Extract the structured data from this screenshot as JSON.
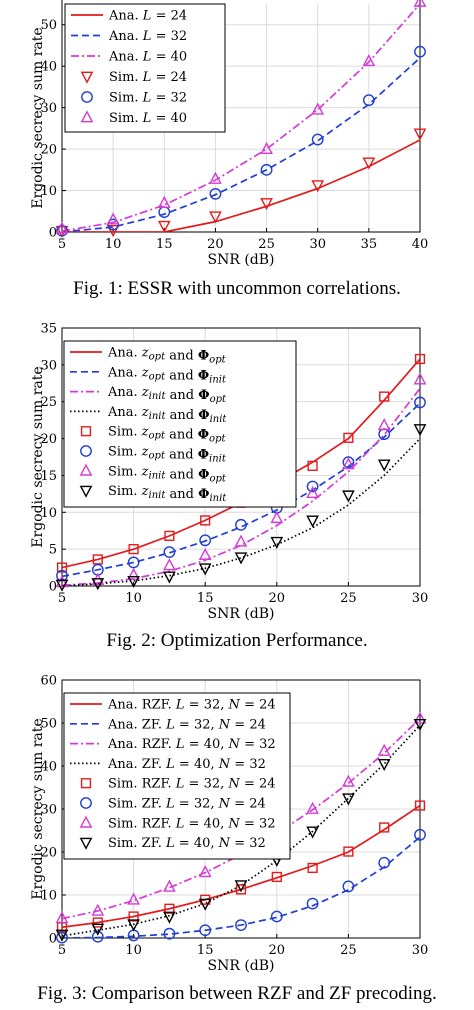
{
  "captions": [
    "Fig. 1: ESSR with uncommon correlations.",
    "Fig. 2: Optimization Performance.",
    "Fig. 3: Comparison between RZF and ZF precoding."
  ],
  "chart_data": [
    {
      "type": "line",
      "title": "",
      "xlabel": "SNR (dB)",
      "ylabel": "Ergodic secrecy sum rate",
      "xlim": [
        5,
        40
      ],
      "ylim": [
        0,
        55
      ],
      "xticks": [
        5,
        10,
        15,
        20,
        25,
        30,
        35,
        40
      ],
      "yticks": [
        0,
        10,
        20,
        30,
        40,
        50
      ],
      "grid": true,
      "legend_position": "top-left",
      "series": [
        {
          "name": "Ana. L = 24",
          "kind": "line",
          "color": "#e41a1c",
          "dash": "solid",
          "x": [
            5,
            10,
            15,
            20,
            25,
            30,
            35,
            40
          ],
          "y": [
            0,
            0,
            0,
            2.5,
            6.2,
            10.5,
            15.8,
            22.2
          ]
        },
        {
          "name": "Ana. L = 32",
          "kind": "line",
          "color": "#1f3fd6",
          "dash": "dashed",
          "x": [
            5,
            10,
            15,
            20,
            25,
            30,
            35,
            40
          ],
          "y": [
            0,
            1.2,
            4.3,
            9.0,
            15.0,
            22.0,
            30.8,
            42.0
          ]
        },
        {
          "name": "Ana. L = 40",
          "kind": "line",
          "color": "#d63ad6",
          "dash": "dashdot",
          "x": [
            5,
            10,
            15,
            20,
            25,
            30,
            35,
            40
          ],
          "y": [
            0.2,
            2.3,
            6.5,
            12.5,
            20.0,
            29.5,
            41.0,
            55.0
          ]
        },
        {
          "name": "Sim. L = 24",
          "kind": "marker",
          "marker": "triangle-down",
          "color": "#e41a1c",
          "x": [
            5,
            10,
            15,
            20,
            25,
            30,
            35,
            40
          ],
          "y": [
            0.3,
            0.5,
            1.5,
            3.8,
            7.0,
            11.3,
            16.8,
            23.8
          ]
        },
        {
          "name": "Sim. L = 32",
          "kind": "marker",
          "marker": "circle",
          "color": "#1f3fd6",
          "x": [
            5,
            10,
            15,
            20,
            25,
            30,
            35,
            40
          ],
          "y": [
            0.3,
            1.8,
            4.8,
            9.2,
            15.0,
            22.3,
            31.8,
            43.5
          ]
        },
        {
          "name": "Sim. L = 40",
          "kind": "marker",
          "marker": "triangle-up",
          "color": "#d63ad6",
          "x": [
            5,
            10,
            15,
            20,
            25,
            30,
            35,
            40
          ],
          "y": [
            0.8,
            3.0,
            7.0,
            12.8,
            20.0,
            29.5,
            41.2,
            55.5
          ]
        }
      ]
    },
    {
      "type": "line",
      "title": "",
      "xlabel": "SNR (dB)",
      "ylabel": "Ergodic secrecy sum rate",
      "xlim": [
        5,
        30
      ],
      "ylim": [
        0,
        35
      ],
      "xticks": [
        5,
        10,
        15,
        20,
        25,
        30
      ],
      "yticks": [
        0,
        5,
        10,
        15,
        20,
        25,
        30,
        35
      ],
      "grid": true,
      "legend_position": "top-left",
      "series": [
        {
          "name": "Ana. z_opt and Φ_opt",
          "kind": "line",
          "color": "#e41a1c",
          "dash": "solid",
          "x": [
            5,
            7.5,
            10,
            12.5,
            15,
            17.5,
            20,
            22.5,
            25,
            27.5,
            30
          ],
          "y": [
            2.5,
            3.6,
            5.0,
            6.8,
            8.9,
            11.3,
            14.0,
            16.8,
            20.0,
            25.2,
            30.8
          ]
        },
        {
          "name": "Ana. z_opt and Φ_init",
          "kind": "line",
          "color": "#1f3fd6",
          "dash": "dashed",
          "x": [
            5,
            7.5,
            10,
            12.5,
            15,
            17.5,
            20,
            22.5,
            25,
            27.5,
            30
          ],
          "y": [
            1.3,
            2.2,
            3.2,
            4.5,
            6.1,
            8.0,
            10.3,
            13.0,
            16.2,
            20.2,
            24.8
          ]
        },
        {
          "name": "Ana. z_init and Φ_opt",
          "kind": "line",
          "color": "#d63ad6",
          "dash": "dashdot",
          "x": [
            5,
            7.5,
            10,
            12.5,
            15,
            17.5,
            20,
            22.5,
            25,
            27.5,
            30
          ],
          "y": [
            0.1,
            0.4,
            1.0,
            2.0,
            3.5,
            5.5,
            8.2,
            11.5,
            15.5,
            20.5,
            26.8
          ]
        },
        {
          "name": "Ana. z_init and Φ_init",
          "kind": "line",
          "color": "#000000",
          "dash": "dotted",
          "x": [
            5,
            7.5,
            10,
            12.5,
            15,
            17.5,
            20,
            22.5,
            25,
            27.5,
            30
          ],
          "y": [
            0,
            0.3,
            0.7,
            1.4,
            2.4,
            3.8,
            5.6,
            7.9,
            11.0,
            15.0,
            20.0
          ]
        },
        {
          "name": "Sim. z_opt and Φ_opt",
          "kind": "marker",
          "marker": "square",
          "color": "#e41a1c",
          "x": [
            5,
            7.5,
            10,
            12.5,
            15,
            17.5,
            20,
            22.5,
            25,
            27.5,
            30
          ],
          "y": [
            2.5,
            3.6,
            5.0,
            6.8,
            8.9,
            11.3,
            14.2,
            16.3,
            20.1,
            25.7,
            30.8
          ]
        },
        {
          "name": "Sim. z_opt and Φ_init",
          "kind": "marker",
          "marker": "circle",
          "color": "#1f3fd6",
          "x": [
            5,
            7.5,
            10,
            12.5,
            15,
            17.5,
            20,
            22.5,
            25,
            27.5,
            30
          ],
          "y": [
            1.4,
            2.2,
            3.2,
            4.6,
            6.2,
            8.3,
            10.6,
            13.5,
            16.8,
            20.6,
            24.9
          ]
        },
        {
          "name": "Sim. z_init and Φ_opt",
          "kind": "marker",
          "marker": "triangle-up",
          "color": "#d63ad6",
          "x": [
            5,
            7.5,
            10,
            12.5,
            15,
            17.5,
            20,
            22.5,
            25,
            27.5,
            30
          ],
          "y": [
            0.5,
            0.8,
            1.5,
            2.8,
            4.2,
            6.0,
            9.2,
            12.6,
            16.5,
            21.8,
            28.0
          ]
        },
        {
          "name": "Sim. z_init and Φ_init",
          "kind": "marker",
          "marker": "triangle-down",
          "color": "#000000",
          "x": [
            5,
            7.5,
            10,
            12.5,
            15,
            17.5,
            20,
            22.5,
            25,
            27.5,
            30
          ],
          "y": [
            0.2,
            0.4,
            0.7,
            1.3,
            2.4,
            3.9,
            6.0,
            8.9,
            12.3,
            16.5,
            21.3
          ]
        }
      ]
    },
    {
      "type": "line",
      "title": "",
      "xlabel": "SNR (dB)",
      "ylabel": "Ergodic secrecy sum rate",
      "xlim": [
        5,
        30
      ],
      "ylim": [
        0,
        60
      ],
      "xticks": [
        5,
        10,
        15,
        20,
        25,
        30
      ],
      "yticks": [
        0,
        10,
        20,
        30,
        40,
        50,
        60
      ],
      "grid": true,
      "legend_position": "top-left",
      "series": [
        {
          "name": "Ana. RZF. L = 32, N = 24",
          "kind": "line",
          "color": "#e41a1c",
          "dash": "solid",
          "x": [
            5,
            7.5,
            10,
            12.5,
            15,
            17.5,
            20,
            22.5,
            25,
            27.5,
            30
          ],
          "y": [
            2.5,
            3.6,
            5.0,
            6.8,
            8.9,
            11.3,
            14.0,
            16.8,
            20.0,
            25.2,
            30.8
          ]
        },
        {
          "name": "Ana. ZF. L = 32, N = 24",
          "kind": "line",
          "color": "#1f3fd6",
          "dash": "dashed",
          "x": [
            5,
            7.5,
            10,
            12.5,
            15,
            17.5,
            20,
            22.5,
            25,
            27.5,
            30
          ],
          "y": [
            0,
            0.1,
            0.4,
            0.9,
            1.8,
            3.0,
            4.8,
            7.5,
            11.2,
            16.5,
            23.5
          ]
        },
        {
          "name": "Ana. RZF. L = 40, N = 32",
          "kind": "line",
          "color": "#d63ad6",
          "dash": "dashdot",
          "x": [
            5,
            7.5,
            10,
            12.5,
            15,
            17.5,
            20,
            22.5,
            25,
            27.5,
            30
          ],
          "y": [
            4.5,
            6.3,
            8.7,
            11.7,
            15.2,
            19.4,
            24.3,
            29.8,
            36.0,
            43.0,
            51.0
          ]
        },
        {
          "name": "Ana. ZF. L = 40, N = 32",
          "kind": "line",
          "color": "#000000",
          "dash": "dotted",
          "x": [
            5,
            7.5,
            10,
            12.5,
            15,
            17.5,
            20,
            22.5,
            25,
            27.5,
            30
          ],
          "y": [
            0.5,
            1.8,
            3.2,
            5.2,
            8.0,
            12.2,
            18.0,
            24.8,
            32.5,
            40.5,
            49.5
          ]
        },
        {
          "name": "Sim. RZF. L = 32, N = 24",
          "kind": "marker",
          "marker": "square",
          "color": "#e41a1c",
          "x": [
            5,
            7.5,
            10,
            12.5,
            15,
            17.5,
            20,
            22.5,
            25,
            27.5,
            30
          ],
          "y": [
            2.5,
            3.6,
            5.0,
            6.8,
            8.9,
            11.3,
            14.2,
            16.3,
            20.1,
            25.7,
            30.8
          ]
        },
        {
          "name": "Sim. ZF. L = 32, N = 24",
          "kind": "marker",
          "marker": "circle",
          "color": "#1f3fd6",
          "x": [
            5,
            7.5,
            10,
            12.5,
            15,
            17.5,
            20,
            22.5,
            25,
            27.5,
            30
          ],
          "y": [
            0.1,
            0.3,
            0.6,
            1.0,
            1.8,
            3.0,
            5.0,
            8.0,
            12.0,
            17.5,
            24.0
          ]
        },
        {
          "name": "Sim. RZF. L = 40, N = 32",
          "kind": "marker",
          "marker": "triangle-up",
          "color": "#d63ad6",
          "x": [
            5,
            7.5,
            10,
            12.5,
            15,
            17.5,
            20,
            22.5,
            25,
            27.5,
            30
          ],
          "y": [
            4.6,
            6.3,
            8.9,
            11.9,
            15.3,
            19.5,
            24.5,
            30.0,
            36.3,
            43.5,
            51.0
          ]
        },
        {
          "name": "Sim. ZF. L = 40, N = 32",
          "kind": "marker",
          "marker": "triangle-down",
          "color": "#000000",
          "x": [
            5,
            7.5,
            10,
            12.5,
            15,
            17.5,
            20,
            22.5,
            25,
            27.5,
            30
          ],
          "y": [
            0.8,
            2.2,
            3.2,
            5.0,
            8.0,
            12.3,
            18.2,
            24.8,
            32.5,
            40.5,
            49.8
          ]
        }
      ]
    }
  ]
}
